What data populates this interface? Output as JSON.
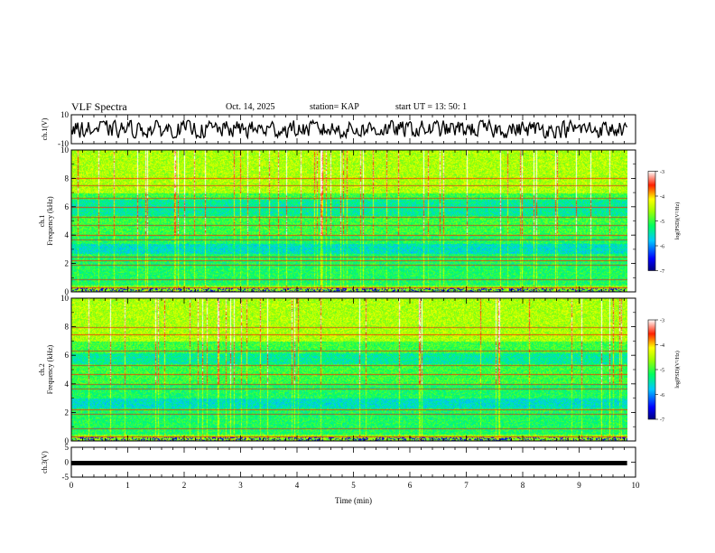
{
  "header": {
    "title": "VLF Spectra",
    "date": "Oct. 14, 2025",
    "station": "station= KAP",
    "start": "start  UT  =   13: 50: 1"
  },
  "chart_data": {
    "type": "heatmap",
    "x_axis": {
      "label": "Time  (min)",
      "range": [
        0,
        10
      ],
      "ticks": [
        "0",
        "1",
        "2",
        "3",
        "4",
        "5",
        "6",
        "7",
        "8",
        "9",
        "10"
      ]
    },
    "data_end_min": 9.85,
    "panels": [
      {
        "name": "ch1-waveform",
        "type": "line",
        "ylabel": "ch.1(V)",
        "ylim": [
          -10,
          10
        ],
        "yticks": [
          "10",
          "-10"
        ],
        "amplitude_range": [
          -6,
          6
        ]
      },
      {
        "name": "ch1-spectrogram",
        "type": "heatmap",
        "ylabel_line1": "ch.1",
        "ylabel_line2": "Frequency  (kHz)",
        "ylim": [
          0,
          10
        ],
        "yticks": [
          "0",
          "2",
          "4",
          "6",
          "8",
          "10"
        ],
        "colorbar": {
          "label": "log(PSD)(V²/Hz)",
          "range": [
            -7,
            -3
          ],
          "ticks": [
            "-3",
            "-4",
            "-5",
            "-6",
            "-7"
          ]
        },
        "bands_khz": [
          0.3,
          0.9,
          1.9,
          2.2,
          2.5,
          3.7,
          4.0,
          4.7,
          5.3,
          6.0,
          6.6,
          7.5,
          8.0
        ],
        "quiet_bands_khz": [
          [
            2.7,
            3.4
          ],
          [
            5.4,
            6.5
          ]
        ]
      },
      {
        "name": "ch2-spectrogram",
        "type": "heatmap",
        "ylabel_line1": "ch.2",
        "ylabel_line2": "Frequency  (kHz)",
        "ylim": [
          0,
          10
        ],
        "yticks": [
          "0",
          "2",
          "4",
          "6",
          "8",
          "10"
        ],
        "colorbar": {
          "label": "log(PSD)(V²/Hz)",
          "range": [
            -7,
            -3
          ],
          "ticks": [
            "-3",
            "-4",
            "-5",
            "-6",
            "-7"
          ]
        },
        "bands_khz": [
          0.3,
          0.9,
          1.9,
          2.2,
          3.7,
          4.0,
          4.7,
          5.3,
          6.3,
          7.5,
          8.0
        ],
        "quiet_bands_khz": [
          [
            2.3,
            3.0
          ],
          [
            5.4,
            6.2
          ]
        ]
      },
      {
        "name": "ch3-waveform",
        "type": "line",
        "ylabel": "ch.3(V)",
        "ylim": [
          -5,
          5
        ],
        "yticks": [
          "5",
          "0",
          "-5"
        ],
        "constant_level": 0
      }
    ]
  }
}
